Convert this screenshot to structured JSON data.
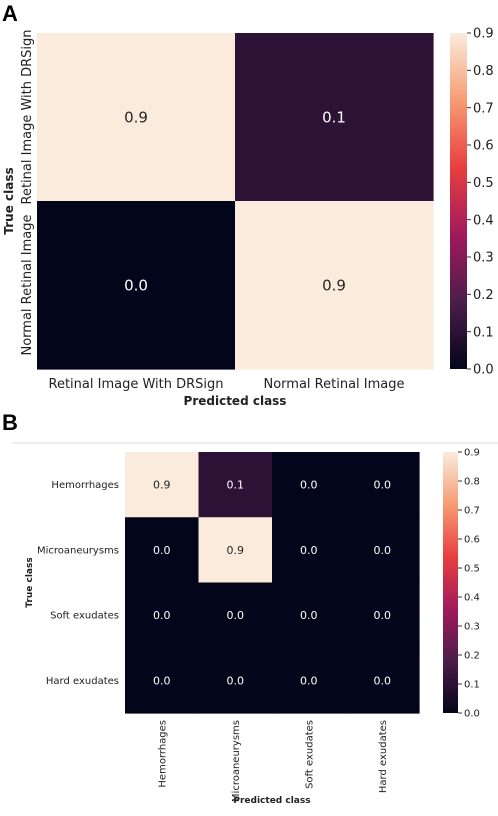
{
  "panels": [
    {
      "letter": "A"
    },
    {
      "letter": "B"
    }
  ],
  "chart_data": [
    {
      "type": "heatmap",
      "title": "",
      "xlabel": "Predicted class",
      "ylabel": "True class",
      "x_categories": [
        "Retinal Image With DRSign",
        "Normal Retinal Image"
      ],
      "y_categories": [
        "Retinal Image With DRSign",
        "Normal Retinal Image"
      ],
      "values": [
        [
          0.9,
          0.1
        ],
        [
          0.0,
          0.9
        ]
      ],
      "cell_labels": [
        [
          "0.9",
          "0.1"
        ],
        [
          "0.0",
          "0.9"
        ]
      ],
      "colorbar": {
        "range": [
          0.0,
          0.9
        ],
        "ticks": [
          "0.9",
          "0.8",
          "0.7",
          "0.6",
          "0.5",
          "0.4",
          "0.3",
          "0.2",
          "0.1",
          "0.0"
        ]
      },
      "colormap": [
        "#03051a",
        "#4c1d4b",
        "#a11a5b",
        "#e83f3f",
        "#f69c73",
        "#faebdd"
      ],
      "grid": false
    },
    {
      "type": "heatmap",
      "title": "",
      "xlabel": "Predicted class",
      "ylabel": "True class",
      "x_categories": [
        "Hemorrhages",
        "Microaneurysms",
        "Soft exudates",
        "Hard exudates"
      ],
      "y_categories": [
        "Hemorrhages",
        "Microaneurysms",
        "Soft exudates",
        "Hard exudates"
      ],
      "values": [
        [
          0.9,
          0.1,
          0.0,
          0.0
        ],
        [
          0.0,
          0.9,
          0.0,
          0.0
        ],
        [
          0.0,
          0.0,
          0.0,
          0.0
        ],
        [
          0.0,
          0.0,
          0.0,
          0.0
        ]
      ],
      "cell_labels": [
        [
          "0.9",
          "0.1",
          "0.0",
          "0.0"
        ],
        [
          "0.0",
          "0.9",
          "0.0",
          "0.0"
        ],
        [
          "0.0",
          "0.0",
          "0.0",
          "0.0"
        ],
        [
          "0.0",
          "0.0",
          "0.0",
          "0.0"
        ]
      ],
      "colorbar": {
        "range": [
          0.0,
          0.9
        ],
        "ticks": [
          "0.9",
          "0.8",
          "0.7",
          "0.6",
          "0.5",
          "0.4",
          "0.3",
          "0.2",
          "0.1",
          "0.0"
        ]
      },
      "colormap": [
        "#03051a",
        "#4c1d4b",
        "#a11a5b",
        "#e83f3f",
        "#f69c73",
        "#faebdd"
      ],
      "grid": false
    }
  ]
}
